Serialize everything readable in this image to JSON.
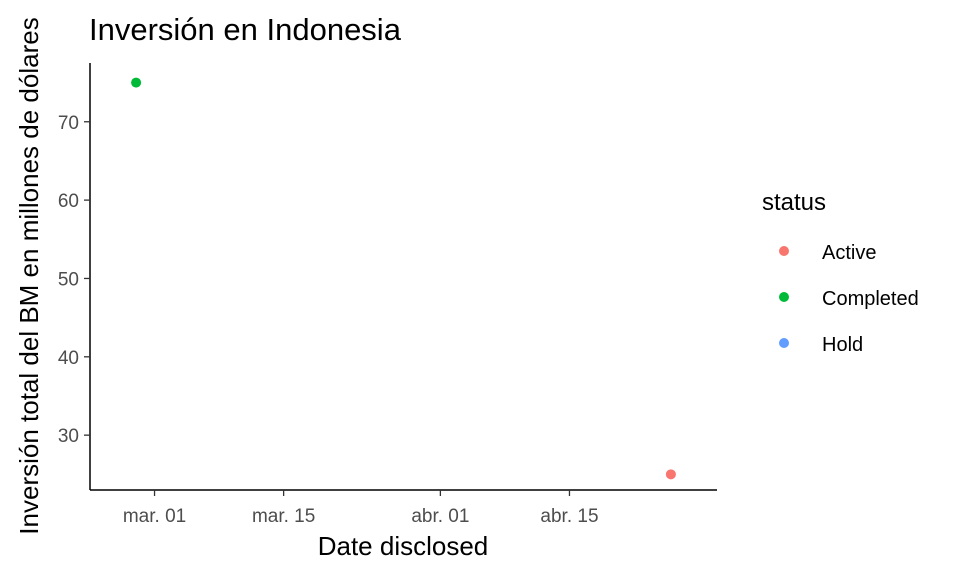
{
  "chart_data": {
    "type": "scatter",
    "title": "Inversión en Indonesia",
    "xlabel": "Date disclosed",
    "ylabel": "Inversión total del BM en millones de dólares",
    "x_ticks": [
      {
        "date": "2023-03-01",
        "label": "mar. 01"
      },
      {
        "date": "2023-03-15",
        "label": "mar. 15"
      },
      {
        "date": "2023-04-01",
        "label": "abr. 01"
      },
      {
        "date": "2023-04-15",
        "label": "abr. 15"
      }
    ],
    "xlim": [
      "2023-02-22",
      "2023-05-01"
    ],
    "y_ticks": [
      30,
      40,
      50,
      60,
      70
    ],
    "ylim": [
      23,
      77.5
    ],
    "grid": false,
    "legend": {
      "title": "status",
      "position": "right",
      "entries": [
        {
          "name": "Active",
          "color": "#F8766D"
        },
        {
          "name": "Completed",
          "color": "#00BA38"
        },
        {
          "name": "Hold",
          "color": "#619CFF"
        }
      ]
    },
    "points": [
      {
        "x": "2023-02-27",
        "y": 75,
        "status": "Completed"
      },
      {
        "x": "2023-04-26",
        "y": 25,
        "status": "Active"
      }
    ]
  }
}
